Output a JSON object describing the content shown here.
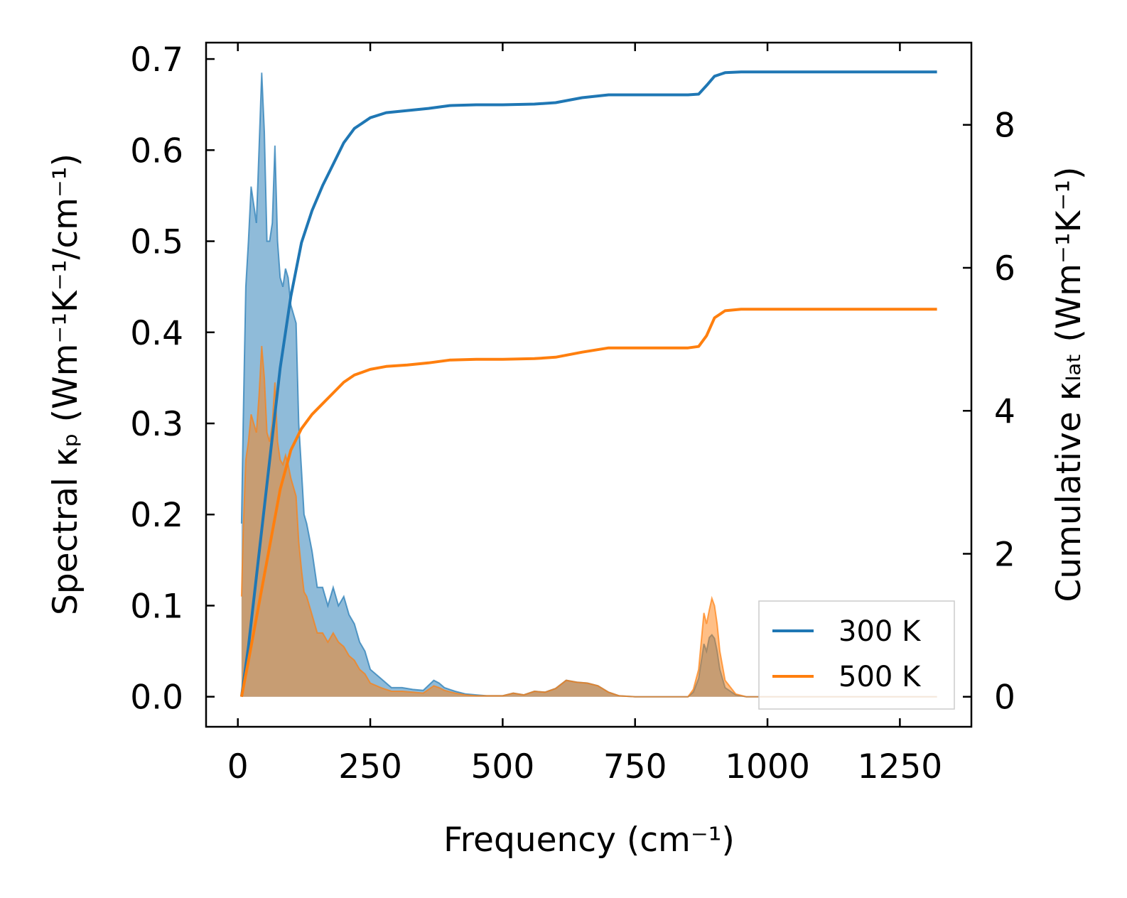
{
  "chart_data": {
    "type": "line",
    "xlabel": "Frequency (cm⁻¹)",
    "ylabel_left": "Spectral κₚ (Wm⁻¹K⁻¹/cm⁻¹)",
    "ylabel_right": "Cumulative κₗₐₜ (Wm⁻¹K⁻¹)",
    "xlim": [
      -60,
      1385
    ],
    "ylim_left": [
      -0.033,
      0.718
    ],
    "ylim_right": [
      -0.42,
      9.15
    ],
    "x_ticks": [
      0,
      250,
      500,
      750,
      1000,
      1250
    ],
    "y_ticks_left": [
      0.0,
      0.1,
      0.2,
      0.3,
      0.4,
      0.5,
      0.6,
      0.7
    ],
    "y_ticks_right": [
      0,
      2,
      4,
      6,
      8
    ],
    "x_tick_labels": [
      "0",
      "250",
      "500",
      "750",
      "1000",
      "1250"
    ],
    "y_tick_labels_left": [
      "0.0",
      "0.1",
      "0.2",
      "0.3",
      "0.4",
      "0.5",
      "0.6",
      "0.7"
    ],
    "y_tick_labels_right": [
      "0",
      "2",
      "4",
      "6",
      "8"
    ],
    "legend_position": "lower-right",
    "series": [
      {
        "name": "300 K",
        "color": "#1f77b4",
        "spectral": {
          "x": [
            7,
            10,
            15,
            20,
            25,
            30,
            35,
            40,
            45,
            50,
            55,
            60,
            65,
            70,
            75,
            80,
            85,
            90,
            95,
            100,
            105,
            110,
            115,
            120,
            125,
            130,
            140,
            150,
            160,
            170,
            180,
            190,
            200,
            210,
            220,
            230,
            240,
            250,
            270,
            290,
            310,
            330,
            350,
            370,
            380,
            390,
            410,
            430,
            450,
            470,
            500,
            520,
            540,
            560,
            580,
            600,
            620,
            640,
            660,
            680,
            700,
            720,
            750,
            800,
            850,
            860,
            870,
            880,
            885,
            890,
            895,
            900,
            905,
            910,
            920,
            940,
            960,
            1000,
            1100,
            1200,
            1320
          ],
          "y": [
            0.19,
            0.3,
            0.45,
            0.5,
            0.56,
            0.54,
            0.52,
            0.6,
            0.685,
            0.62,
            0.5,
            0.5,
            0.52,
            0.605,
            0.5,
            0.46,
            0.45,
            0.47,
            0.46,
            0.43,
            0.42,
            0.41,
            0.3,
            0.25,
            0.2,
            0.19,
            0.16,
            0.12,
            0.12,
            0.1,
            0.12,
            0.1,
            0.11,
            0.09,
            0.08,
            0.06,
            0.05,
            0.03,
            0.02,
            0.01,
            0.01,
            0.008,
            0.007,
            0.018,
            0.015,
            0.01,
            0.006,
            0.003,
            0.002,
            0.001,
            0.001,
            0.004,
            0.002,
            0.006,
            0.005,
            0.009,
            0.018,
            0.016,
            0.015,
            0.012,
            0.005,
            0.001,
            0.0,
            0.0,
            0.0,
            0.005,
            0.02,
            0.058,
            0.05,
            0.065,
            0.068,
            0.064,
            0.05,
            0.03,
            0.01,
            0.002,
            0.0,
            0.0,
            0.0,
            0.0,
            0.0
          ]
        },
        "cumulative": {
          "x": [
            7,
            20,
            40,
            60,
            80,
            100,
            120,
            140,
            160,
            180,
            200,
            220,
            250,
            280,
            320,
            360,
            400,
            450,
            500,
            560,
            600,
            650,
            700,
            750,
            800,
            850,
            870,
            885,
            900,
            920,
            950,
            1000,
            1320
          ],
          "y": [
            0.0,
            0.7,
            2.0,
            3.3,
            4.6,
            5.6,
            6.35,
            6.8,
            7.15,
            7.45,
            7.75,
            7.95,
            8.1,
            8.17,
            8.2,
            8.23,
            8.27,
            8.28,
            8.28,
            8.29,
            8.31,
            8.38,
            8.42,
            8.42,
            8.42,
            8.42,
            8.43,
            8.55,
            8.68,
            8.73,
            8.74,
            8.74,
            8.74
          ]
        }
      },
      {
        "name": "500 K",
        "color": "#ff7f0e",
        "spectral": {
          "x": [
            7,
            10,
            15,
            20,
            25,
            30,
            35,
            40,
            45,
            50,
            55,
            60,
            65,
            70,
            75,
            80,
            85,
            90,
            95,
            100,
            105,
            110,
            115,
            120,
            125,
            130,
            140,
            150,
            160,
            170,
            180,
            190,
            200,
            210,
            220,
            230,
            240,
            250,
            270,
            290,
            310,
            330,
            350,
            370,
            380,
            390,
            410,
            430,
            450,
            470,
            500,
            520,
            540,
            560,
            580,
            600,
            620,
            640,
            660,
            680,
            700,
            720,
            750,
            800,
            850,
            860,
            870,
            880,
            885,
            890,
            895,
            900,
            905,
            910,
            920,
            940,
            960,
            1000,
            1100,
            1200,
            1320
          ],
          "y": [
            0.11,
            0.18,
            0.26,
            0.28,
            0.31,
            0.3,
            0.29,
            0.33,
            0.385,
            0.35,
            0.29,
            0.28,
            0.3,
            0.345,
            0.28,
            0.26,
            0.255,
            0.265,
            0.255,
            0.24,
            0.23,
            0.22,
            0.17,
            0.14,
            0.115,
            0.11,
            0.09,
            0.07,
            0.07,
            0.06,
            0.07,
            0.06,
            0.055,
            0.045,
            0.04,
            0.03,
            0.025,
            0.015,
            0.01,
            0.006,
            0.006,
            0.005,
            0.004,
            0.012,
            0.01,
            0.007,
            0.004,
            0.002,
            0.001,
            0.001,
            0.001,
            0.004,
            0.002,
            0.006,
            0.005,
            0.009,
            0.018,
            0.016,
            0.015,
            0.012,
            0.005,
            0.001,
            0.0,
            0.0,
            0.0,
            0.008,
            0.03,
            0.092,
            0.08,
            0.095,
            0.108,
            0.1,
            0.08,
            0.05,
            0.018,
            0.003,
            0.0,
            0.0,
            0.0,
            0.0,
            0.0
          ]
        },
        "cumulative": {
          "x": [
            7,
            20,
            40,
            60,
            80,
            100,
            120,
            140,
            160,
            180,
            200,
            220,
            250,
            280,
            320,
            360,
            400,
            450,
            500,
            560,
            600,
            650,
            700,
            750,
            800,
            850,
            870,
            885,
            900,
            920,
            950,
            1000,
            1320
          ],
          "y": [
            0.0,
            0.5,
            1.3,
            2.1,
            2.9,
            3.45,
            3.75,
            3.95,
            4.1,
            4.25,
            4.4,
            4.5,
            4.58,
            4.62,
            4.64,
            4.67,
            4.71,
            4.72,
            4.72,
            4.73,
            4.75,
            4.82,
            4.88,
            4.88,
            4.88,
            4.88,
            4.9,
            5.05,
            5.3,
            5.4,
            5.42,
            5.42,
            5.42
          ]
        }
      }
    ]
  }
}
